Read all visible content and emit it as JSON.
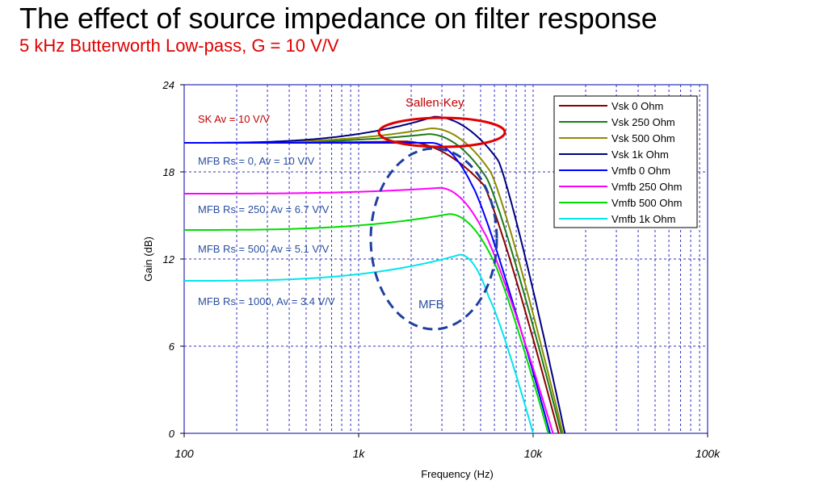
{
  "slide": {
    "title": "The effect of source impedance on filter response",
    "subtitle": "5 kHz Butterworth Low-pass, G = 10 V/V"
  },
  "chart_data": {
    "type": "line",
    "xlabel": "Frequency (Hz)",
    "ylabel": "Gain (dB)",
    "x_scale": "log",
    "xlim": [
      100,
      100000
    ],
    "ylim": [
      0,
      24
    ],
    "grid": true,
    "legend_position": "top-right",
    "x_ticks": [
      {
        "value": 100,
        "label": "100"
      },
      {
        "value": 1000,
        "label": "1k"
      },
      {
        "value": 10000,
        "label": "10k"
      },
      {
        "value": 100000,
        "label": "100k"
      }
    ],
    "y_ticks": [
      {
        "value": 0,
        "label": "0"
      },
      {
        "value": 6,
        "label": "6"
      },
      {
        "value": 12,
        "label": "12"
      },
      {
        "value": 18,
        "label": "18"
      },
      {
        "value": 24,
        "label": "24"
      }
    ],
    "series": [
      {
        "name": "Vsk 0 Ohm",
        "color": "#8b0000",
        "dc": 20.0,
        "peak": 20.1,
        "fp": 1800,
        "fc": 5200,
        "end_freq": 14000
      },
      {
        "name": "Vsk 250 Ohm",
        "color": "#1a7a1a",
        "dc": 20.0,
        "peak": 20.6,
        "fp": 2500,
        "fc": 5400,
        "end_freq": 14500
      },
      {
        "name": "Vsk 500 Ohm",
        "color": "#8b8b00",
        "dc": 20.0,
        "peak": 21.0,
        "fp": 2600,
        "fc": 5700,
        "end_freq": 14800
      },
      {
        "name": "Vsk 1k Ohm",
        "color": "#000080",
        "dc": 20.0,
        "peak": 21.8,
        "fp": 2700,
        "fc": 6300,
        "end_freq": 15200
      },
      {
        "name": "Vmfb  0 Ohm",
        "color": "#0000ff",
        "dc": 20.0,
        "peak": 20.0,
        "fp": 2600,
        "fc": 4500,
        "end_freq": 12500
      },
      {
        "name": "Vmfb  250 Ohm",
        "color": "#ff00ff",
        "dc": 16.5,
        "peak": 16.9,
        "fp": 2900,
        "fc": 5200,
        "end_freq": 13000
      },
      {
        "name": "Vmfb  500 Ohm",
        "color": "#00dd00",
        "dc": 14.0,
        "peak": 15.1,
        "fp": 3300,
        "fc": 5800,
        "end_freq": 12200
      },
      {
        "name": "Vmfb  1k Ohm",
        "color": "#00e5ee",
        "dc": 10.5,
        "peak": 12.3,
        "fp": 3800,
        "fc": 5600,
        "end_freq": 10000
      }
    ],
    "annotations": {
      "sk_gain": "SK  Av = 10 V/V",
      "mfb_0": "MFB  Rs = 0,  Av = 10 V/V",
      "mfb_250": "MFB  Rs = 250,  Av = 6.7 V/V",
      "mfb_500": "MFB  Rs = 500,  Av = 5.1 V/V",
      "mfb_1000": "MFB  Rs = 1000,  Av = 3.4 V/V",
      "sallen_key": "Sallen-Key",
      "mfb": "MFB"
    }
  }
}
